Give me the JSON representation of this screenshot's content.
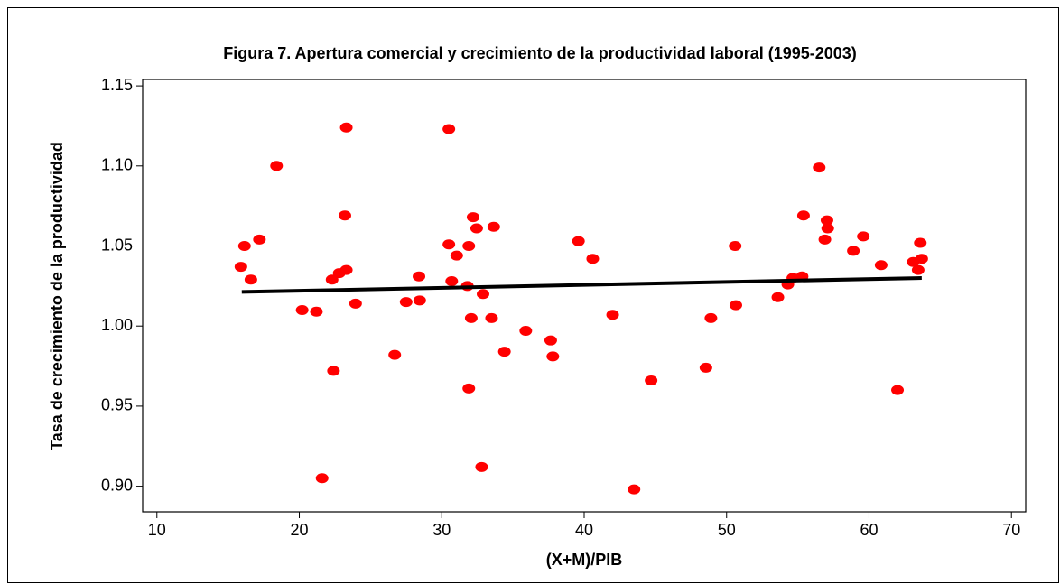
{
  "chart_data": {
    "type": "scatter",
    "title": "Figura 7. Apertura comercial y crecimiento de la productividad laboral (1995-2003)",
    "x_label": "(X+M)/PIB",
    "y_label": "Tasa de crecimiento de la productividad",
    "xlim": [
      9,
      71
    ],
    "ylim": [
      0.884,
      1.154
    ],
    "xticks": [
      10,
      20,
      30,
      40,
      50,
      60,
      70
    ],
    "yticks": [
      {
        "value": 0.9,
        "label": "0.90"
      },
      {
        "value": 0.95,
        "label": "0.95"
      },
      {
        "value": 1.0,
        "label": "1.00"
      },
      {
        "value": 1.05,
        "label": "1.05"
      },
      {
        "value": 1.1,
        "label": "1.10"
      },
      {
        "value": 1.15,
        "label": "1.15"
      }
    ],
    "series": [
      {
        "color": "#ff0000",
        "x": [
          15.9,
          16.15,
          16.6,
          17.2,
          18.4,
          20.2,
          21.2,
          21.6,
          22.3,
          22.4,
          22.8,
          23.2,
          23.3,
          23.3,
          23.95,
          26.7,
          27.5,
          28.4,
          28.45,
          30.5,
          30.5,
          30.7,
          31.05,
          31.8,
          31.9,
          31.9,
          32.07,
          32.2,
          32.45,
          32.8,
          32.9,
          33.5,
          33.65,
          34.4,
          35.9,
          37.65,
          37.8,
          39.6,
          40.6,
          42.0,
          43.5,
          44.7,
          48.55,
          48.9,
          50.6,
          50.65,
          53.6,
          54.3,
          54.65,
          55.3,
          55.4,
          56.5,
          56.9,
          57.05,
          57.1,
          58.9,
          59.6,
          60.85,
          62.0,
          63.1,
          63.45,
          63.6,
          63.7
        ],
        "values": [
          1.037,
          1.05,
          1.029,
          1.054,
          1.1,
          1.01,
          1.009,
          0.905,
          1.029,
          0.972,
          1.033,
          1.069,
          1.035,
          1.124,
          1.014,
          0.982,
          1.015,
          1.031,
          1.016,
          1.123,
          1.051,
          1.028,
          1.044,
          1.025,
          1.05,
          0.961,
          1.005,
          1.068,
          1.061,
          0.912,
          1.02,
          1.005,
          1.062,
          0.984,
          0.997,
          0.991,
          0.981,
          1.053,
          1.042,
          1.007,
          0.898,
          0.966,
          0.974,
          1.005,
          1.05,
          1.013,
          1.018,
          1.026,
          1.03,
          1.031,
          1.069,
          1.099,
          1.054,
          1.066,
          1.061,
          1.047,
          1.056,
          1.038,
          0.96,
          1.04,
          1.035,
          1.052,
          1.042
        ]
      },
      {
        "type": "line",
        "color": "#000000",
        "x": [
          15.96,
          63.7
        ],
        "values": [
          1.0213,
          1.03
        ]
      }
    ]
  }
}
